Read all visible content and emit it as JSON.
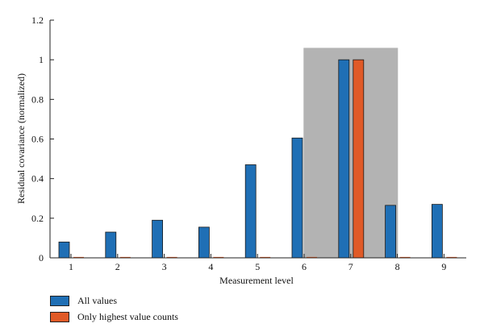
{
  "chart_data": {
    "type": "bar",
    "xlabel": "Measurement level",
    "ylabel": "Residual covariance (normalized)",
    "categories": [
      "1",
      "2",
      "3",
      "4",
      "5",
      "6",
      "7",
      "8",
      "9"
    ],
    "ylim": [
      0,
      1.2
    ],
    "yticks": [
      "0",
      "0.2",
      "0.4",
      "0.6",
      "0.8",
      "1",
      "1.2"
    ],
    "series": [
      {
        "name": "All values",
        "color": "#1f6fb5",
        "values": [
          0.08,
          0.13,
          0.19,
          0.155,
          0.47,
          0.605,
          1.0,
          0.265,
          0.27
        ]
      },
      {
        "name": "Only highest value counts",
        "color": "#e05a27",
        "values": [
          0,
          0,
          0,
          0,
          0,
          0,
          1.0,
          0,
          0
        ]
      }
    ],
    "highlight": {
      "category": "7",
      "ymax": 1.06,
      "color": "#b3b3b3"
    },
    "grid": false,
    "legend_position": "bottom-left"
  }
}
